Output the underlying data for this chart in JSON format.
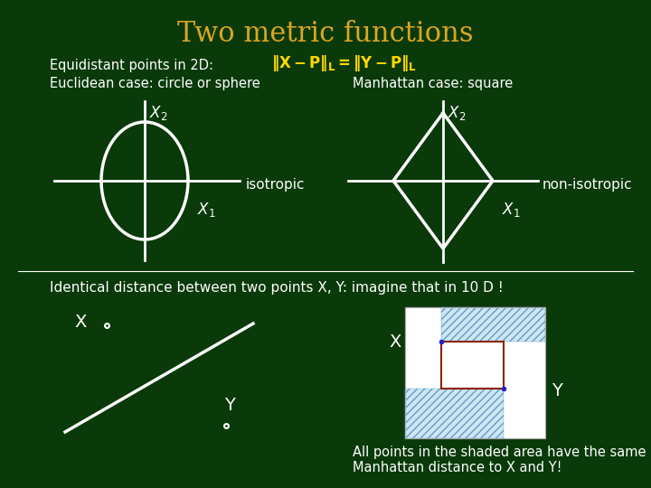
{
  "title": "Two metric functions",
  "title_color": "#DAA520",
  "bg_color": "#0a3a0a",
  "text_color": "white",
  "text1": "Equidistant points in 2D:",
  "text2": "Euclidean case: circle or sphere",
  "text3": "Manhattan case: square",
  "label_iso": "isotropic",
  "label_noniso": "non-isotropic",
  "text4": "Identical distance between two points X, Y: imagine that in 10 D !",
  "text5": "All points in the shaded area have the same",
  "text6": "Manhattan distance to X and Y!"
}
